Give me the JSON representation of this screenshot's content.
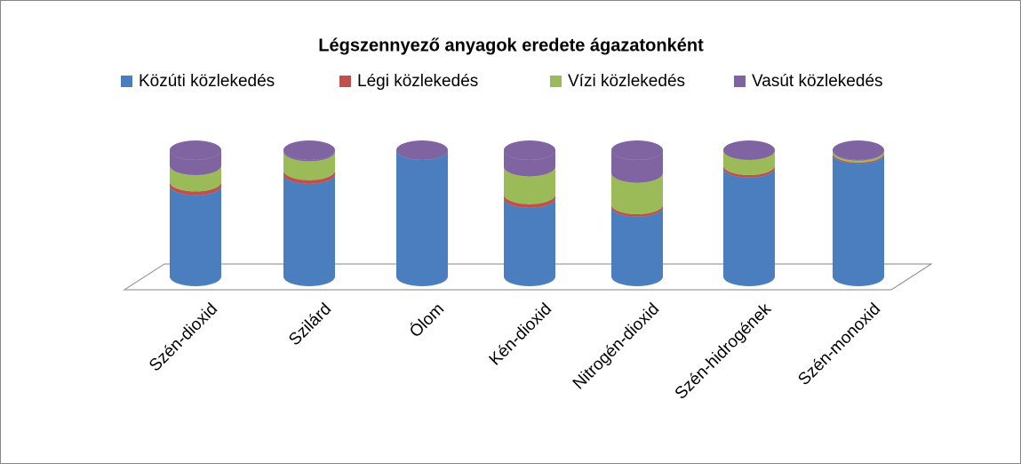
{
  "chart_data": {
    "type": "bar3d_stacked_percent",
    "title": "Légszennyező anyagok eredete ágazatonként",
    "categories": [
      "Szén-dioxid",
      "Szilárd",
      "Ólom",
      "Kén-dioxid",
      "Nitrogén-dioxid",
      "Szén-hidrogének",
      "Szén-monoxid"
    ],
    "series": [
      {
        "name": "Közúti közlekedés",
        "color": "#4a7ebf",
        "values": [
          72,
          81,
          100,
          62,
          55,
          86,
          97
        ]
      },
      {
        "name": "Légi közlekedés",
        "color": "#c0504d",
        "values": [
          3,
          3,
          0,
          3,
          2,
          2,
          1
        ]
      },
      {
        "name": "Vízi közlekedés",
        "color": "#9bbb59",
        "values": [
          13,
          15,
          0,
          22,
          25,
          12,
          1.5
        ]
      },
      {
        "name": "Vasút közlekedés",
        "color": "#8064a2",
        "values": [
          12,
          1,
          0,
          13,
          18,
          0,
          0.5
        ]
      }
    ],
    "legend": "top"
  }
}
